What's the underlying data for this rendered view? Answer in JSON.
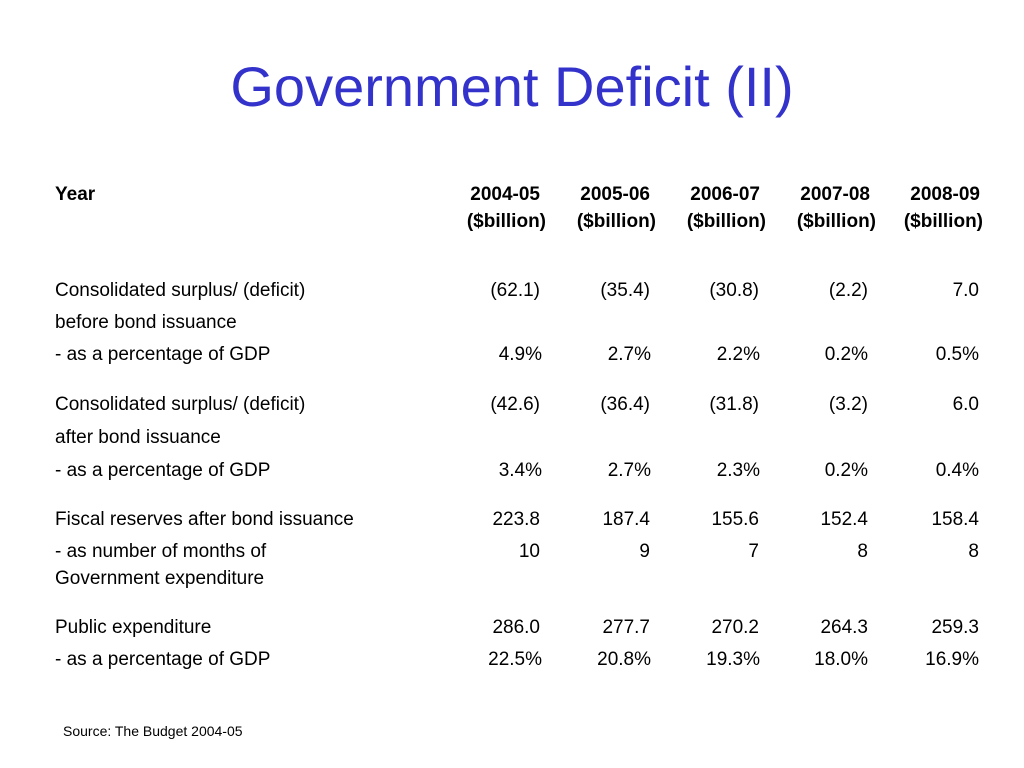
{
  "slide": {
    "title": "Government Deficit (II)",
    "source": "Source: The Budget 2004-05",
    "title_color": "#3333cc"
  },
  "table": {
    "header": {
      "label": "Year",
      "columns": [
        {
          "year": "2004-05",
          "unit": "($billion)"
        },
        {
          "year": "2005-06",
          "unit": "($billion)"
        },
        {
          "year": "2006-07",
          "unit": "($billion)"
        },
        {
          "year": "2007-08",
          "unit": "($billion)"
        },
        {
          "year": "2008-09",
          "unit": "($billion)"
        }
      ]
    },
    "rows": [
      {
        "label": "Consolidated surplus/ (deficit)",
        "values": [
          "(62.1)",
          "(35.4)",
          "(30.8)",
          "(2.2)",
          "7.0"
        ]
      },
      {
        "label": "before bond issuance",
        "values": []
      },
      {
        "label": "- as a percentage of GDP",
        "values": [
          "4.9%",
          "2.7%",
          "2.2%",
          "0.2%",
          "0.5%"
        ]
      },
      {
        "label": "Consolidated surplus/ (deficit)",
        "values": [
          "(42.6)",
          "(36.4)",
          "(31.8)",
          "(3.2)",
          "6.0"
        ]
      },
      {
        "label": "after bond issuance",
        "values": []
      },
      {
        "label": "- as a percentage of GDP",
        "values": [
          "3.4%",
          "2.7%",
          "2.3%",
          "0.2%",
          "0.4%"
        ]
      },
      {
        "label": "Fiscal reserves after bond issuance",
        "values": [
          "223.8",
          "187.4",
          "155.6",
          "152.4",
          "158.4"
        ]
      },
      {
        "label": "- as number of months of",
        "values": [
          "10",
          "9",
          "7",
          "8",
          "8"
        ]
      },
      {
        "label": "Government expenditure",
        "values": []
      },
      {
        "label": "Public expenditure",
        "values": [
          "286.0",
          "277.7",
          "270.2",
          "264.3",
          "259.3"
        ]
      },
      {
        "label": "- as a percentage of GDP",
        "values": [
          "22.5%",
          "20.8%",
          "19.3%",
          "18.0%",
          "16.9%"
        ]
      }
    ]
  }
}
